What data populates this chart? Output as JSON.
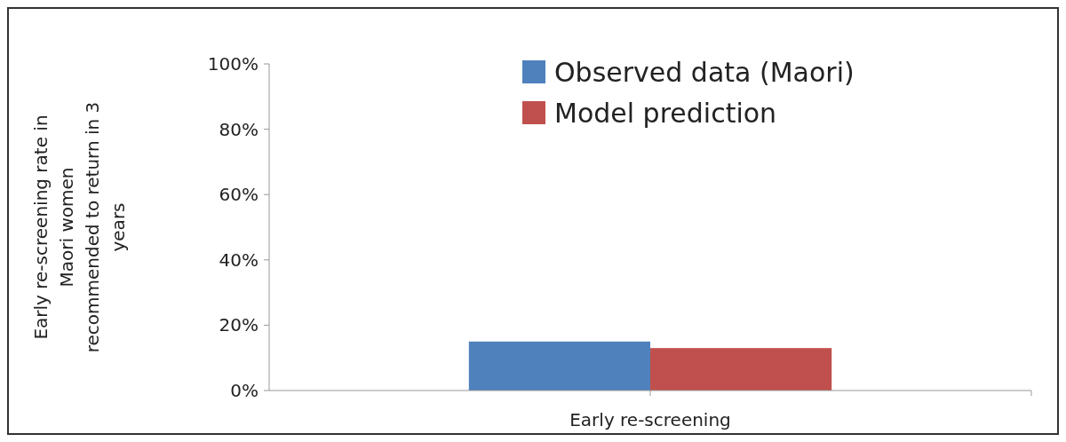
{
  "chart_data": {
    "type": "bar",
    "ylabel": "Early re-screening rate in\nMaori women\nrecommended to return in 3\nyears",
    "categories": [
      "Early re-screening"
    ],
    "series": [
      {
        "name": "Observed data (Maori)",
        "color": "#4f81bd",
        "values": [
          15
        ]
      },
      {
        "name": "Model prediction",
        "color": "#c0504d",
        "values": [
          13
        ]
      }
    ],
    "ylim": [
      0,
      100
    ],
    "yticks": [
      {
        "value": 0,
        "label": "0%"
      },
      {
        "value": 20,
        "label": "20%"
      },
      {
        "value": 40,
        "label": "40%"
      },
      {
        "value": 60,
        "label": "60%"
      },
      {
        "value": 80,
        "label": "80%"
      },
      {
        "value": 100,
        "label": "100%"
      }
    ],
    "grid": false,
    "legend": "top right"
  }
}
